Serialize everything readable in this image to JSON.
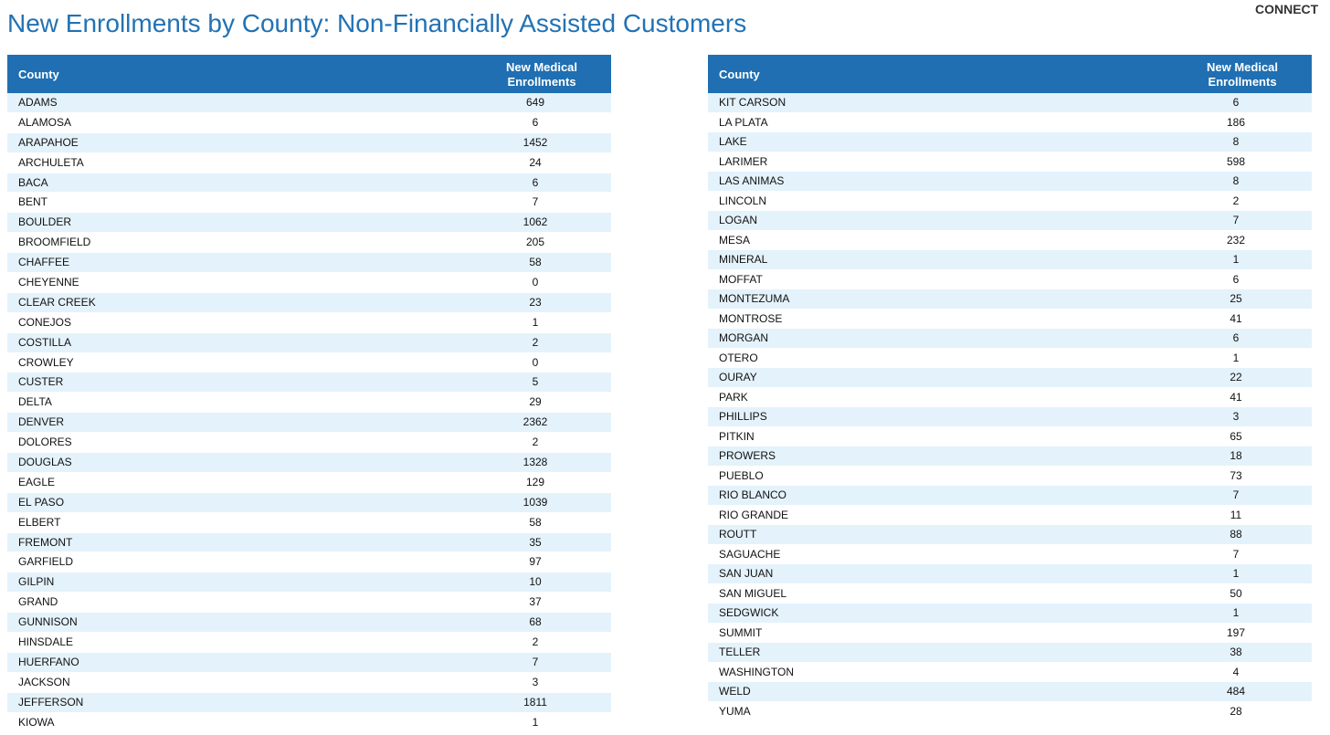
{
  "header": {
    "title": "New Enrollments by County: Non-Financially Assisted Customers",
    "logo": "CONNECT"
  },
  "tables": [
    {
      "columns": [
        "County",
        "New Medical Enrollments"
      ],
      "rows": [
        [
          "ADAMS",
          649
        ],
        [
          "ALAMOSA",
          6
        ],
        [
          "ARAPAHOE",
          1452
        ],
        [
          "ARCHULETA",
          24
        ],
        [
          "BACA",
          6
        ],
        [
          "BENT",
          7
        ],
        [
          "BOULDER",
          1062
        ],
        [
          "BROOMFIELD",
          205
        ],
        [
          "CHAFFEE",
          58
        ],
        [
          "CHEYENNE",
          0
        ],
        [
          "CLEAR CREEK",
          23
        ],
        [
          "CONEJOS",
          1
        ],
        [
          "COSTILLA",
          2
        ],
        [
          "CROWLEY",
          0
        ],
        [
          "CUSTER",
          5
        ],
        [
          "DELTA",
          29
        ],
        [
          "DENVER",
          2362
        ],
        [
          "DOLORES",
          2
        ],
        [
          "DOUGLAS",
          1328
        ],
        [
          "EAGLE",
          129
        ],
        [
          "EL PASO",
          1039
        ],
        [
          "ELBERT",
          58
        ],
        [
          "FREMONT",
          35
        ],
        [
          "GARFIELD",
          97
        ],
        [
          "GILPIN",
          10
        ],
        [
          "GRAND",
          37
        ],
        [
          "GUNNISON",
          68
        ],
        [
          "HINSDALE",
          2
        ],
        [
          "HUERFANO",
          7
        ],
        [
          "JACKSON",
          3
        ],
        [
          "JEFFERSON",
          1811
        ],
        [
          "KIOWA",
          1
        ]
      ]
    },
    {
      "columns": [
        "County",
        "New Medical Enrollments"
      ],
      "rows": [
        [
          "KIT CARSON",
          6
        ],
        [
          "LA PLATA",
          186
        ],
        [
          "LAKE",
          8
        ],
        [
          "LARIMER",
          598
        ],
        [
          "LAS ANIMAS",
          8
        ],
        [
          "LINCOLN",
          2
        ],
        [
          "LOGAN",
          7
        ],
        [
          "MESA",
          232
        ],
        [
          "MINERAL",
          1
        ],
        [
          "MOFFAT",
          6
        ],
        [
          "MONTEZUMA",
          25
        ],
        [
          "MONTROSE",
          41
        ],
        [
          "MORGAN",
          6
        ],
        [
          "OTERO",
          1
        ],
        [
          "OURAY",
          22
        ],
        [
          "PARK",
          41
        ],
        [
          "PHILLIPS",
          3
        ],
        [
          "PITKIN",
          65
        ],
        [
          "PROWERS",
          18
        ],
        [
          "PUEBLO",
          73
        ],
        [
          "RIO BLANCO",
          7
        ],
        [
          "RIO GRANDE",
          11
        ],
        [
          "ROUTT",
          88
        ],
        [
          "SAGUACHE",
          7
        ],
        [
          "SAN JUAN",
          1
        ],
        [
          "SAN MIGUEL",
          50
        ],
        [
          "SEDGWICK",
          1
        ],
        [
          "SUMMIT",
          197
        ],
        [
          "TELLER",
          38
        ],
        [
          "WASHINGTON",
          4
        ],
        [
          "WELD",
          484
        ],
        [
          "YUMA",
          28
        ]
      ]
    }
  ]
}
